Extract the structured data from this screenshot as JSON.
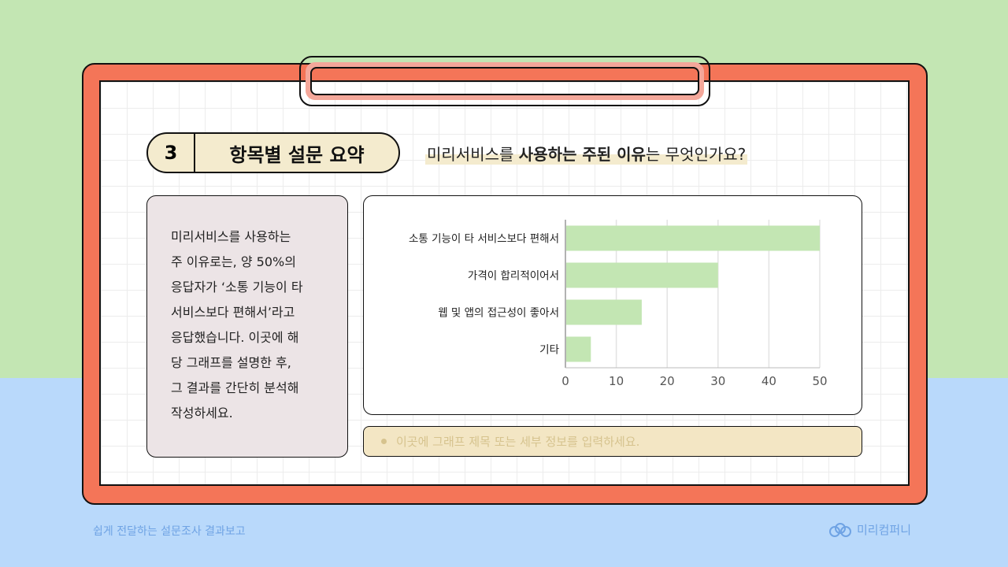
{
  "section": {
    "number": "3",
    "title": "항목별 설문 요약"
  },
  "question": {
    "pre": "미리서비스를 ",
    "bold1": "사용하는 주된 이유",
    "mid": "는 무엇인가요?"
  },
  "summary": "미리서비스를 사용하는\n주 이유로는, 양 50%의\n응답자가 ‘소통 기능이 타\n서비스보다 편해서’라고\n응답했습니다. 이곳에 해\n당 그래프를 설명한 후,\n그 결과를 간단히 분석해\n작성하세요.",
  "caption": "이곳에 그래프 제목 또는 세부 정보를 입력하세요.",
  "footer": {
    "left": "쉽게 전달하는 설문조사 결과보고",
    "brand": "미리컴퍼니"
  },
  "colors": {
    "bar": "#c3e6b3",
    "frame": "#f47558",
    "top_bg": "#c3e6b3",
    "bottom_bg": "#b9d9fb"
  },
  "chart_data": {
    "type": "bar",
    "orientation": "horizontal",
    "categories": [
      "소통 기능이 타 서비스보다 편해서",
      "가격이 합리적이어서",
      "웹 및 앱의 접근성이 좋아서",
      "기타"
    ],
    "values": [
      50,
      30,
      15,
      5
    ],
    "xlim": [
      0,
      50
    ],
    "xticks": [
      0,
      10,
      20,
      30,
      40,
      50
    ],
    "grid": true
  }
}
